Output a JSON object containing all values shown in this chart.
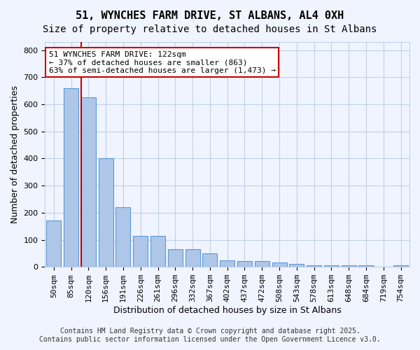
{
  "title_line1": "51, WYNCHES FARM DRIVE, ST ALBANS, AL4 0XH",
  "title_line2": "Size of property relative to detached houses in St Albans",
  "xlabel": "Distribution of detached houses by size in St Albans",
  "ylabel": "Number of detached properties",
  "categories": [
    "50sqm",
    "85sqm",
    "120sqm",
    "156sqm",
    "191sqm",
    "226sqm",
    "261sqm",
    "296sqm",
    "332sqm",
    "367sqm",
    "402sqm",
    "437sqm",
    "472sqm",
    "508sqm",
    "543sqm",
    "578sqm",
    "613sqm",
    "648sqm",
    "684sqm",
    "719sqm",
    "754sqm"
  ],
  "values": [
    170,
    660,
    625,
    400,
    220,
    115,
    115,
    65,
    65,
    50,
    25,
    20,
    20,
    15,
    10,
    5,
    5,
    5,
    5,
    0,
    5
  ],
  "bar_color": "#aec6e8",
  "bar_edge_color": "#5b9bd5",
  "property_line_x": 2,
  "property_line_label": "51 WYNCHES FARM DRIVE: 122sqm",
  "annotation_line2": "← 37% of detached houses are smaller (863)",
  "annotation_line3": "63% of semi-detached houses are larger (1,473) →",
  "annotation_box_color": "#ffffff",
  "annotation_box_edge": "#cc0000",
  "annotation_text_color": "#000000",
  "vline_color": "#cc0000",
  "background_color": "#f0f4ff",
  "grid_color": "#c0d0e8",
  "ylim": [
    0,
    830
  ],
  "yticks": [
    0,
    100,
    200,
    300,
    400,
    500,
    600,
    700,
    800
  ],
  "footer_line1": "Contains HM Land Registry data © Crown copyright and database right 2025.",
  "footer_line2": "Contains public sector information licensed under the Open Government Licence v3.0.",
  "title_fontsize": 11,
  "subtitle_fontsize": 10,
  "axis_label_fontsize": 9,
  "tick_fontsize": 8,
  "annotation_fontsize": 8,
  "footer_fontsize": 7
}
